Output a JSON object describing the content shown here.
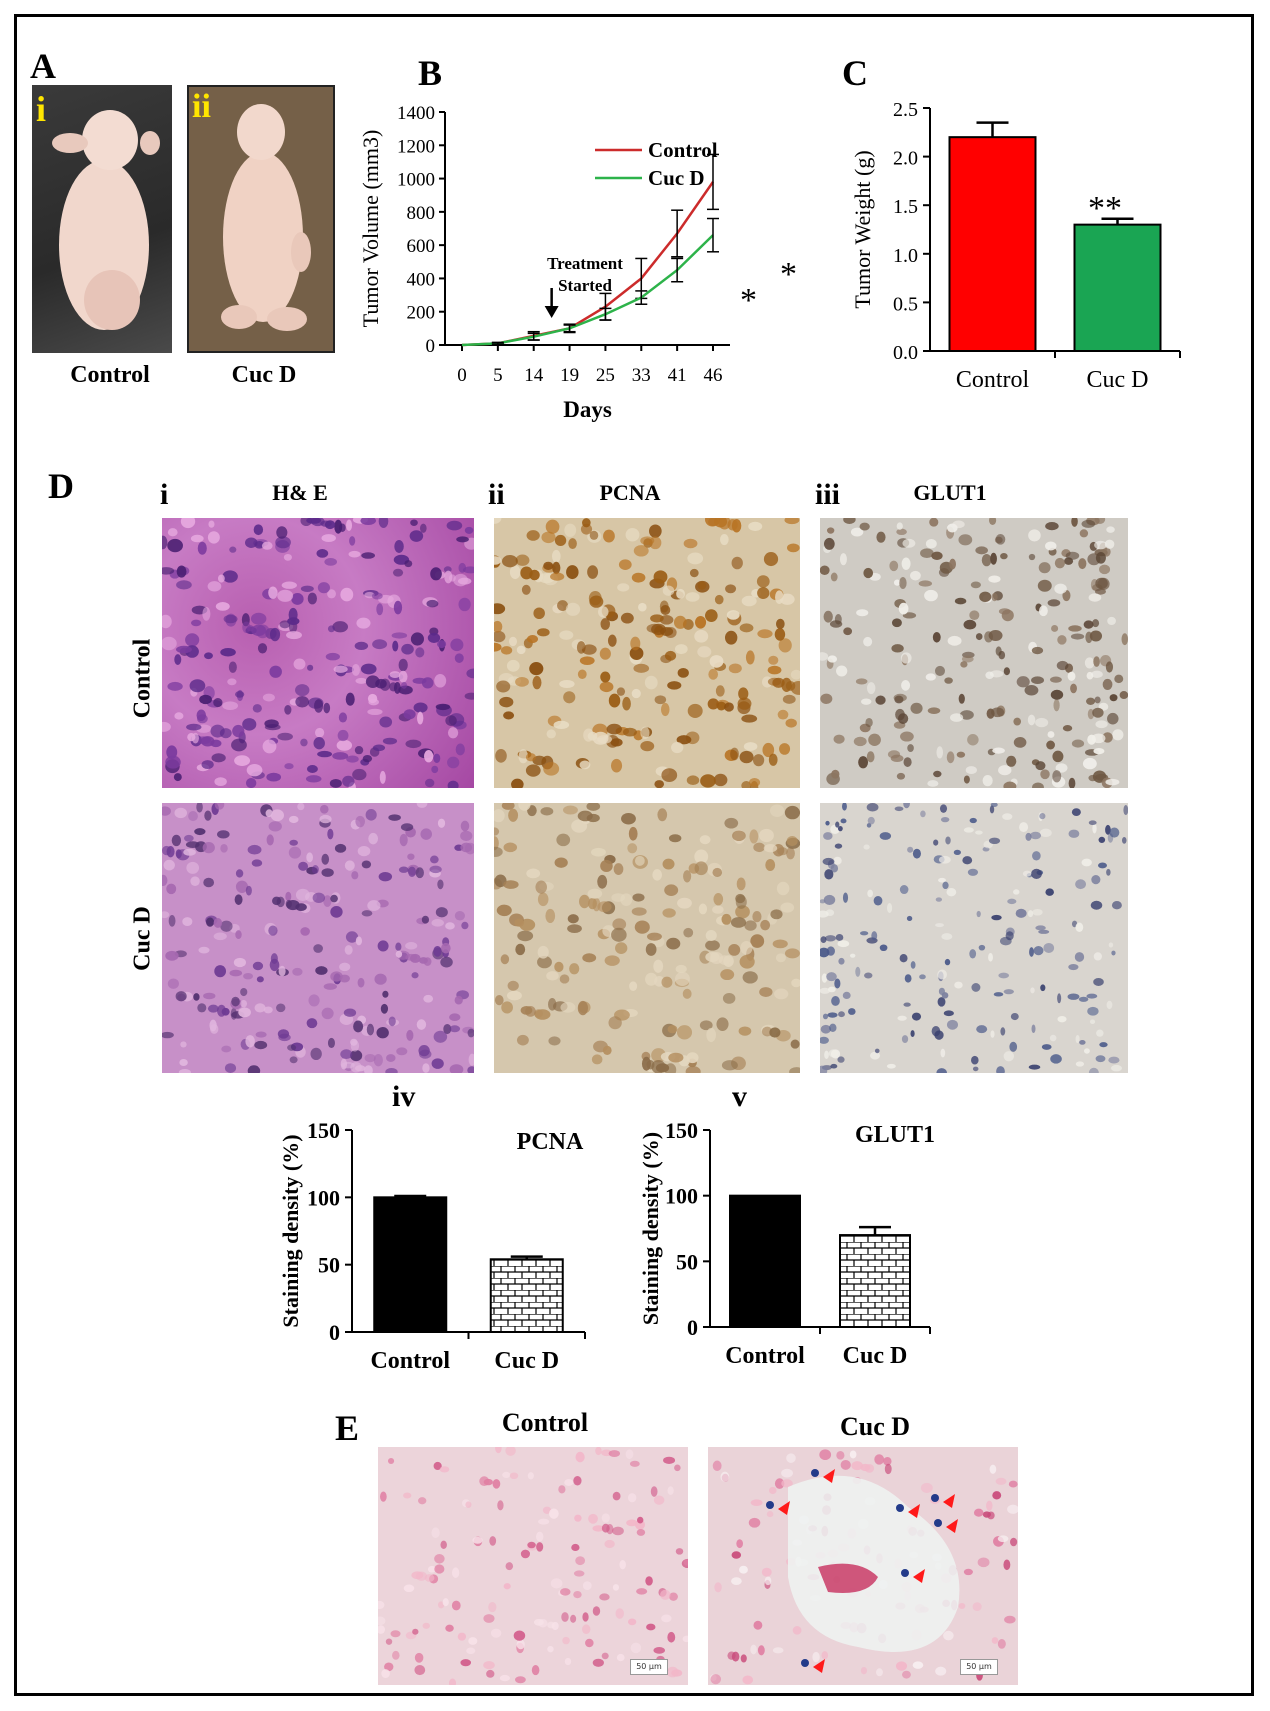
{
  "panels": {
    "A": {
      "label": "A",
      "img_i": "i",
      "img_ii": "ii",
      "cap_control": "Control",
      "cap_cucd": "Cuc D"
    },
    "B": {
      "label": "B",
      "treatment": [
        "Treatment",
        "Started"
      ],
      "stars": [
        "*",
        "*"
      ]
    },
    "C": {
      "label": "C",
      "stars": "**"
    },
    "D": {
      "label": "D",
      "col_i": "i",
      "col_ii": "ii",
      "col_iii": "iii",
      "title_he": "H& E",
      "title_pcna": "PCNA",
      "title_glut1": "GLUT1",
      "row_control": "Control",
      "row_cucd": "Cuc D",
      "sub_iv": "iv",
      "sub_v": "v",
      "iv_title": "PCNA",
      "v_title": "GLUT1"
    },
    "E": {
      "label": "E",
      "title_control": "Control",
      "title_cucd": "Cuc D",
      "scale": "50 μm"
    }
  },
  "chart_data": [
    {
      "id": "B",
      "type": "line",
      "x": [
        0,
        5,
        14,
        19,
        25,
        33,
        41,
        46
      ],
      "xlabel": "Days",
      "ylabel": "Tumor Volume (mm3)",
      "ylim": [
        0,
        1400
      ],
      "yticks": [
        0,
        200,
        400,
        600,
        800,
        1000,
        1200,
        1400
      ],
      "legend": "top-right",
      "series": [
        {
          "name": "Control",
          "color": "#cc2b2b",
          "values": [
            0,
            10,
            55,
            100,
            230,
            400,
            670,
            980
          ],
          "errors": [
            0,
            5,
            25,
            25,
            80,
            120,
            140,
            165
          ]
        },
        {
          "name": "Cuc D",
          "color": "#2db34a",
          "values": [
            0,
            10,
            50,
            100,
            185,
            285,
            450,
            660
          ],
          "errors": [
            0,
            5,
            20,
            20,
            35,
            40,
            70,
            100
          ]
        }
      ]
    },
    {
      "id": "C",
      "type": "bar",
      "categories": [
        "Control",
        "Cuc D"
      ],
      "values": [
        2.2,
        1.3
      ],
      "errors": [
        0.15,
        0.06
      ],
      "colors": [
        "#ff0000",
        "#1aa553"
      ],
      "ylabel": "Tumor Weight (g)",
      "ylim": [
        0,
        2.5
      ],
      "yticks": [
        "0.0",
        "0.5",
        "1.0",
        "1.5",
        "2.0",
        "2.5"
      ]
    },
    {
      "id": "D-iv",
      "type": "bar",
      "categories": [
        "Control",
        "Cuc D"
      ],
      "values": [
        100,
        54
      ],
      "errors": [
        1,
        2
      ],
      "ylabel": "Staining density (%)",
      "ylim": [
        0,
        150
      ],
      "yticks": [
        0,
        50,
        100,
        150
      ]
    },
    {
      "id": "D-v",
      "type": "bar",
      "categories": [
        "Control",
        "Cuc D"
      ],
      "values": [
        100,
        70
      ],
      "errors": [
        0,
        6
      ],
      "ylabel": "Staining density (%)",
      "ylim": [
        0,
        150
      ],
      "yticks": [
        0,
        50,
        100,
        150
      ]
    }
  ]
}
